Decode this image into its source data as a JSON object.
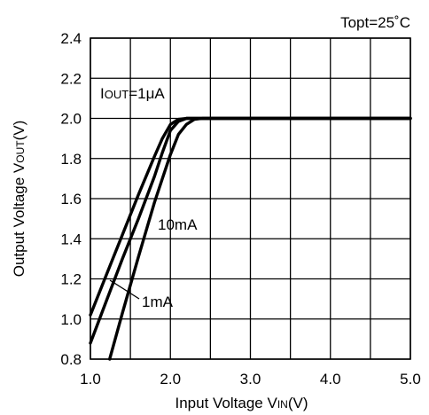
{
  "chart_data": {
    "type": "line",
    "condition_label": "Topt=25˚C",
    "xlabel": {
      "main": "Input Voltage V",
      "sub": "IN",
      "unit": "(V)"
    },
    "ylabel": {
      "main": "Output Voltage V",
      "sub": "OUT",
      "unit": "(V)"
    },
    "xlim": [
      1.0,
      5.0
    ],
    "ylim": [
      0.8,
      2.4
    ],
    "xticks": [
      "1.0",
      "2.0",
      "3.0",
      "4.0",
      "5.0"
    ],
    "yticks": [
      "0.8",
      "1.0",
      "1.2",
      "1.4",
      "1.6",
      "1.8",
      "2.0",
      "2.2",
      "2.4"
    ],
    "grid": true,
    "series": [
      {
        "name": "I",
        "name_sub": "OUT",
        "name_tail": "=1μA",
        "x": [
          1.0,
          1.2,
          1.4,
          1.6,
          1.8,
          1.9,
          2.0,
          2.1,
          2.2,
          2.3,
          5.0
        ],
        "y": [
          1.02,
          1.22,
          1.42,
          1.62,
          1.81,
          1.9,
          1.97,
          1.995,
          2.0,
          2.0,
          2.0
        ]
      },
      {
        "name": "1mA",
        "x": [
          1.0,
          1.2,
          1.4,
          1.6,
          1.8,
          1.9,
          2.0,
          2.1,
          2.2,
          2.3,
          5.0
        ],
        "y": [
          0.88,
          1.09,
          1.3,
          1.5,
          1.71,
          1.83,
          1.94,
          1.985,
          2.0,
          2.0,
          2.0
        ]
      },
      {
        "name": "10mA",
        "x": [
          1.24,
          1.4,
          1.6,
          1.8,
          1.9,
          2.0,
          2.1,
          2.2,
          2.3,
          2.4,
          5.0
        ],
        "y": [
          0.8,
          1.03,
          1.31,
          1.58,
          1.7,
          1.82,
          1.92,
          1.97,
          1.995,
          2.0,
          2.0
        ]
      }
    ]
  }
}
